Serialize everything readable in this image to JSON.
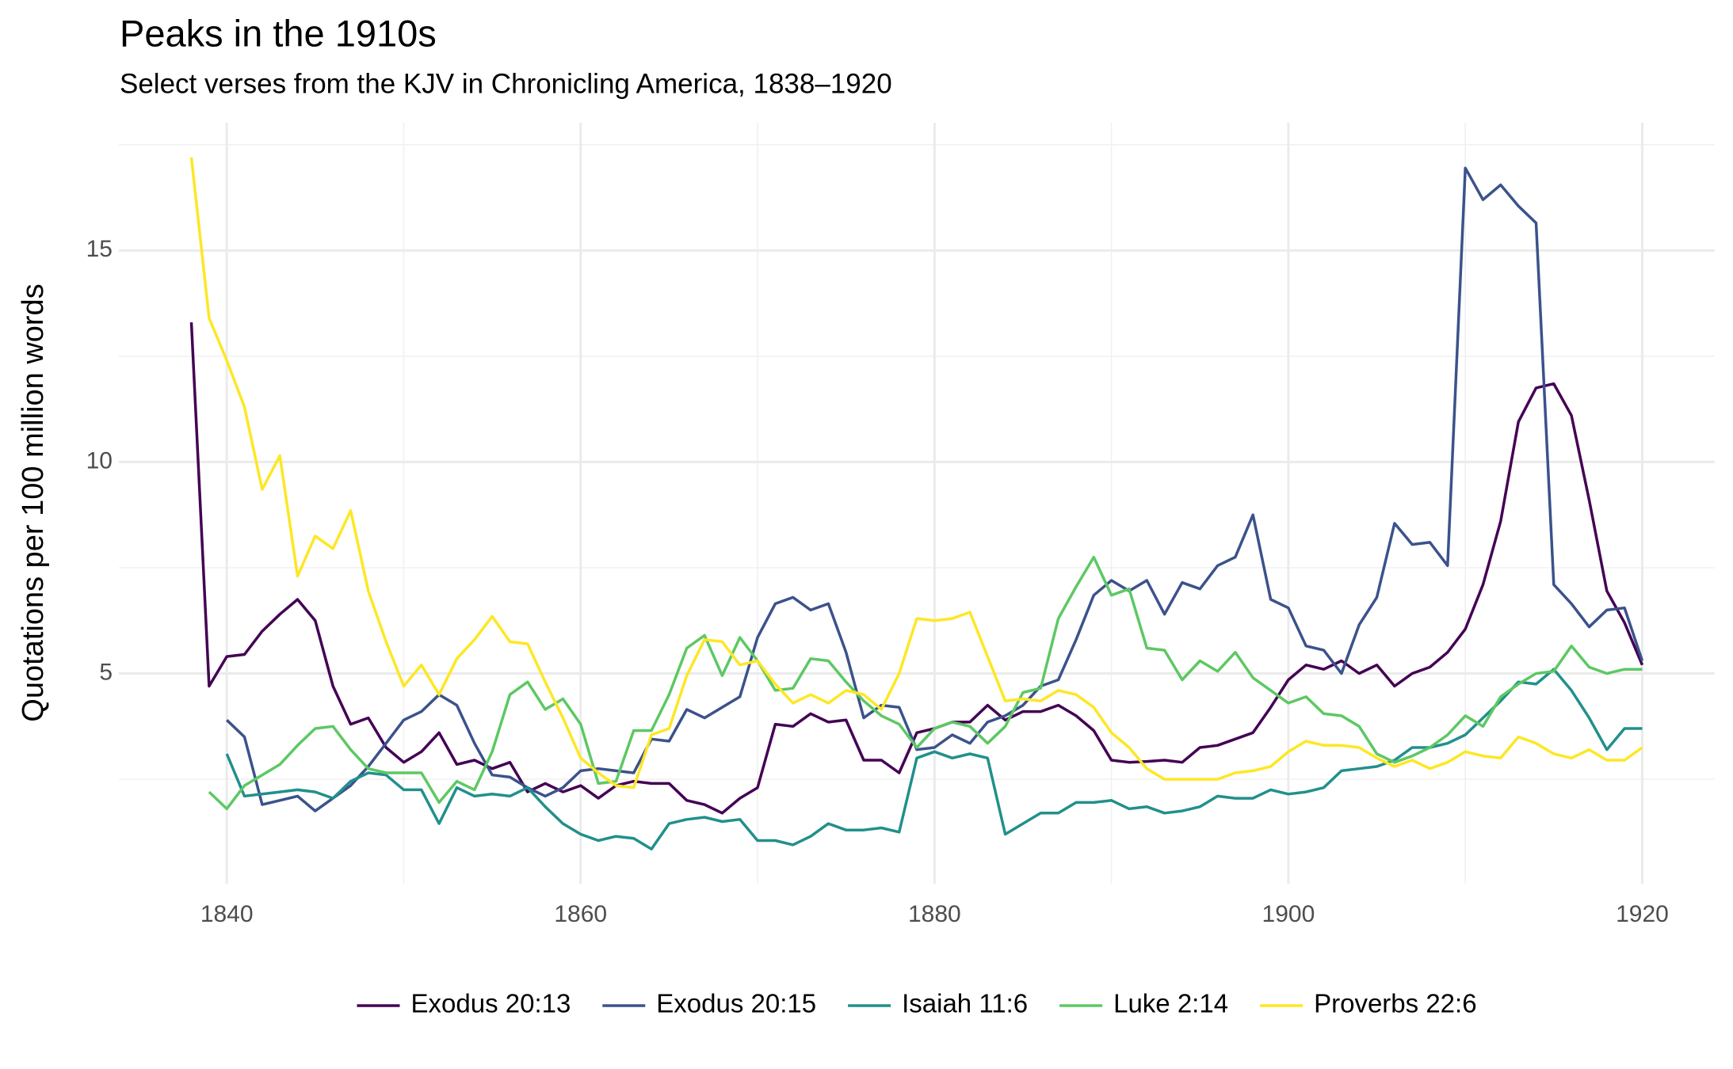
{
  "chart_data": {
    "type": "line",
    "title": "Peaks in the 1910s",
    "subtitle": "Select verses from the KJV in Chronicling America, 1838–1920",
    "y_label": "Quotations per 100 million words",
    "x": [
      1838,
      1839,
      1840,
      1841,
      1842,
      1843,
      1844,
      1845,
      1846,
      1847,
      1848,
      1849,
      1850,
      1851,
      1852,
      1853,
      1854,
      1855,
      1856,
      1857,
      1858,
      1859,
      1860,
      1861,
      1862,
      1863,
      1864,
      1865,
      1866,
      1867,
      1868,
      1869,
      1870,
      1871,
      1872,
      1873,
      1874,
      1875,
      1876,
      1877,
      1878,
      1879,
      1880,
      1881,
      1882,
      1883,
      1884,
      1885,
      1886,
      1887,
      1888,
      1889,
      1890,
      1891,
      1892,
      1893,
      1894,
      1895,
      1896,
      1897,
      1898,
      1899,
      1900,
      1901,
      1902,
      1903,
      1904,
      1905,
      1906,
      1907,
      1908,
      1909,
      1910,
      1911,
      1912,
      1913,
      1914,
      1915,
      1916,
      1917,
      1918,
      1919,
      1920
    ],
    "series": [
      {
        "name": "Exodus 20:13",
        "color": "#440154",
        "values": [
          13.3,
          4.7,
          5.4,
          5.45,
          6.0,
          6.4,
          6.75,
          6.25,
          4.7,
          3.8,
          3.95,
          3.25,
          2.9,
          3.15,
          3.6,
          2.85,
          2.95,
          2.75,
          2.9,
          2.2,
          2.4,
          2.2,
          2.35,
          2.05,
          2.35,
          2.45,
          2.4,
          2.4,
          2.0,
          1.9,
          1.7,
          2.05,
          2.3,
          3.8,
          3.75,
          4.05,
          3.85,
          3.9,
          2.95,
          2.95,
          2.65,
          3.6,
          3.7,
          3.85,
          3.85,
          4.25,
          3.9,
          4.1,
          4.1,
          4.25,
          4.0,
          3.65,
          2.95,
          2.9,
          2.92,
          2.95,
          2.9,
          3.25,
          3.3,
          3.45,
          3.6,
          4.2,
          4.85,
          5.2,
          5.1,
          5.3,
          5.0,
          5.2,
          4.7,
          5.0,
          5.15,
          5.5,
          6.05,
          7.1,
          8.6,
          10.95,
          11.75,
          11.85,
          11.1,
          9.1,
          6.95,
          6.2,
          5.2
        ]
      },
      {
        "name": "Exodus 20:15",
        "color": "#3b528b",
        "values": [
          null,
          null,
          3.9,
          3.5,
          1.9,
          2.0,
          2.1,
          1.75,
          2.05,
          2.35,
          2.8,
          3.35,
          3.9,
          4.1,
          4.5,
          4.25,
          3.35,
          2.6,
          2.55,
          2.3,
          2.1,
          2.3,
          2.7,
          2.75,
          2.7,
          2.65,
          3.45,
          3.4,
          4.15,
          3.95,
          4.2,
          4.45,
          5.85,
          6.65,
          6.8,
          6.5,
          6.65,
          5.5,
          3.95,
          4.25,
          4.2,
          3.2,
          3.25,
          3.55,
          3.35,
          3.85,
          4.0,
          4.25,
          4.7,
          4.85,
          5.8,
          6.85,
          7.2,
          6.95,
          7.2,
          6.4,
          7.15,
          7.0,
          7.55,
          7.75,
          8.75,
          6.75,
          6.55,
          5.65,
          5.55,
          5.0,
          6.15,
          6.8,
          8.55,
          8.05,
          8.1,
          7.55,
          16.95,
          16.2,
          16.55,
          16.05,
          15.65,
          7.1,
          6.65,
          6.1,
          6.5,
          6.55,
          5.3
        ]
      },
      {
        "name": "Isaiah 11:6",
        "color": "#21908c",
        "values": [
          null,
          null,
          3.1,
          2.1,
          2.15,
          2.2,
          2.25,
          2.2,
          2.05,
          2.45,
          2.65,
          2.6,
          2.25,
          2.25,
          1.45,
          2.3,
          2.1,
          2.15,
          2.1,
          2.3,
          1.85,
          1.45,
          1.2,
          1.05,
          1.15,
          1.1,
          0.85,
          1.45,
          1.55,
          1.6,
          1.5,
          1.55,
          1.05,
          1.05,
          0.95,
          1.15,
          1.45,
          1.3,
          1.3,
          1.35,
          1.25,
          3.0,
          3.15,
          3.0,
          3.1,
          3.0,
          1.2,
          1.45,
          1.7,
          1.7,
          1.95,
          1.95,
          2.0,
          1.8,
          1.85,
          1.7,
          1.75,
          1.85,
          2.1,
          2.05,
          2.05,
          2.25,
          2.15,
          2.2,
          2.3,
          2.7,
          2.75,
          2.8,
          2.95,
          3.25,
          3.25,
          3.35,
          3.55,
          3.95,
          4.35,
          4.8,
          4.75,
          5.1,
          4.6,
          3.95,
          3.2,
          3.7,
          3.7
        ]
      },
      {
        "name": "Luke 2:14",
        "color": "#5dc863",
        "values": [
          null,
          2.2,
          1.8,
          2.35,
          2.6,
          2.85,
          3.3,
          3.7,
          3.75,
          3.2,
          2.75,
          2.65,
          2.65,
          2.65,
          1.95,
          2.45,
          2.25,
          3.15,
          4.5,
          4.8,
          4.15,
          4.4,
          3.8,
          2.4,
          2.45,
          3.65,
          3.65,
          4.5,
          5.6,
          5.9,
          4.95,
          5.85,
          5.3,
          4.6,
          4.65,
          5.35,
          5.3,
          4.8,
          4.35,
          4.0,
          3.8,
          3.25,
          3.7,
          3.85,
          3.75,
          3.35,
          3.75,
          4.55,
          4.65,
          6.3,
          7.05,
          7.75,
          6.85,
          7.0,
          5.6,
          5.55,
          4.85,
          5.3,
          5.05,
          5.5,
          4.9,
          4.6,
          4.3,
          4.45,
          4.05,
          4.0,
          3.75,
          3.1,
          2.9,
          3.05,
          3.25,
          3.55,
          4.0,
          3.75,
          4.45,
          4.75,
          5.0,
          5.05,
          5.65,
          5.15,
          5.0,
          5.1,
          5.1
        ]
      },
      {
        "name": "Proverbs 22:6",
        "color": "#fde725",
        "values": [
          17.2,
          13.4,
          12.4,
          11.3,
          9.35,
          10.15,
          7.3,
          8.25,
          7.95,
          8.85,
          6.95,
          5.75,
          4.7,
          5.2,
          4.5,
          5.35,
          5.8,
          6.35,
          5.75,
          5.7,
          4.8,
          3.95,
          3.0,
          2.65,
          2.35,
          2.3,
          3.55,
          3.7,
          4.95,
          5.8,
          5.75,
          5.2,
          5.3,
          4.75,
          4.3,
          4.5,
          4.3,
          4.6,
          4.5,
          4.15,
          5.0,
          6.3,
          6.25,
          6.3,
          6.45,
          5.4,
          4.35,
          4.4,
          4.35,
          4.6,
          4.5,
          4.2,
          3.6,
          3.25,
          2.75,
          2.5,
          2.5,
          2.5,
          2.5,
          2.65,
          2.7,
          2.8,
          3.15,
          3.4,
          3.3,
          3.3,
          3.25,
          3.0,
          2.8,
          2.95,
          2.75,
          2.9,
          3.15,
          3.05,
          3.0,
          3.5,
          3.35,
          3.1,
          3.0,
          3.2,
          2.95,
          2.95,
          3.25
        ]
      }
    ],
    "xlim": [
      1833.9,
      1924.1
    ],
    "ylim": [
      0.03,
      18.02
    ],
    "xticks": [
      1840,
      1860,
      1880,
      1900,
      1920
    ],
    "yticks": [
      5,
      10,
      15
    ],
    "x_minor_grid": [
      1850,
      1870,
      1890,
      1910
    ],
    "y_minor_grid": [
      2.5,
      7.5,
      12.5,
      17.5
    ],
    "grid": true,
    "legend": "bottom"
  }
}
